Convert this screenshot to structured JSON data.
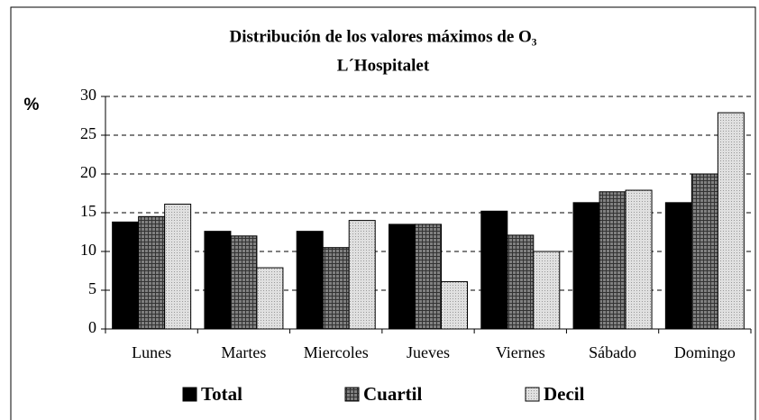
{
  "chart_data": {
    "type": "bar",
    "title": "Distribución de los valores máximos de O₃",
    "subtitle": "L´Hospitalet",
    "y_label": "%",
    "categories": [
      "Lunes",
      "Martes",
      "Miercoles",
      "Jueves",
      "Viernes",
      "Sábado",
      "Domingo"
    ],
    "series": [
      {
        "name": "Total",
        "color": "#000000",
        "values": [
          13.8,
          12.6,
          12.6,
          13.5,
          15.2,
          16.3,
          16.3
        ]
      },
      {
        "name": "Cuartil",
        "color": "#808080",
        "values": [
          14.5,
          12.0,
          10.5,
          13.5,
          12.1,
          17.7,
          20.0
        ]
      },
      {
        "name": "Decil",
        "color": "#e0e0e0",
        "values": [
          16.1,
          7.9,
          14.0,
          6.1,
          10.0,
          17.9,
          27.9
        ]
      }
    ],
    "ylim": [
      0,
      30
    ],
    "yticks": [
      0,
      5,
      10,
      15,
      20,
      25,
      30
    ],
    "grid": true,
    "legend": "bottom"
  }
}
